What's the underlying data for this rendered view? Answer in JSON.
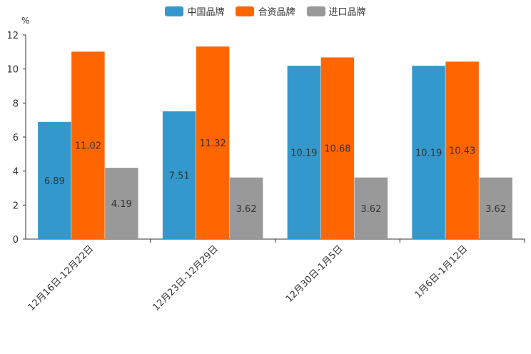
{
  "chart_data": {
    "type": "bar",
    "unit": "%",
    "categories": [
      "12月16日-12月22日",
      "12月23日-12月29日",
      "12月30日-1月5日",
      "1月6日-1月12日"
    ],
    "series": [
      {
        "name": "中国品牌",
        "color": "#3399cc",
        "values": [
          6.89,
          7.51,
          10.19,
          10.19
        ],
        "labels": [
          "6.89",
          "7.51",
          "10.19",
          "10.19"
        ]
      },
      {
        "name": "合资品牌",
        "color": "#ff6600",
        "values": [
          11.02,
          11.32,
          10.68,
          10.43
        ],
        "labels": [
          "11.02",
          "11.32",
          "10.68",
          "10.43"
        ]
      },
      {
        "name": "进口品牌",
        "color": "#999999",
        "values": [
          4.19,
          3.62,
          3.62,
          3.62
        ],
        "labels": [
          "4.19",
          "3.62",
          "3.62",
          "3.62"
        ]
      }
    ],
    "ylim": [
      0,
      12
    ],
    "yticks": [
      "0",
      "2",
      "4",
      "6",
      "8",
      "10",
      "12"
    ],
    "grid": false,
    "legend_position": "top-center"
  }
}
